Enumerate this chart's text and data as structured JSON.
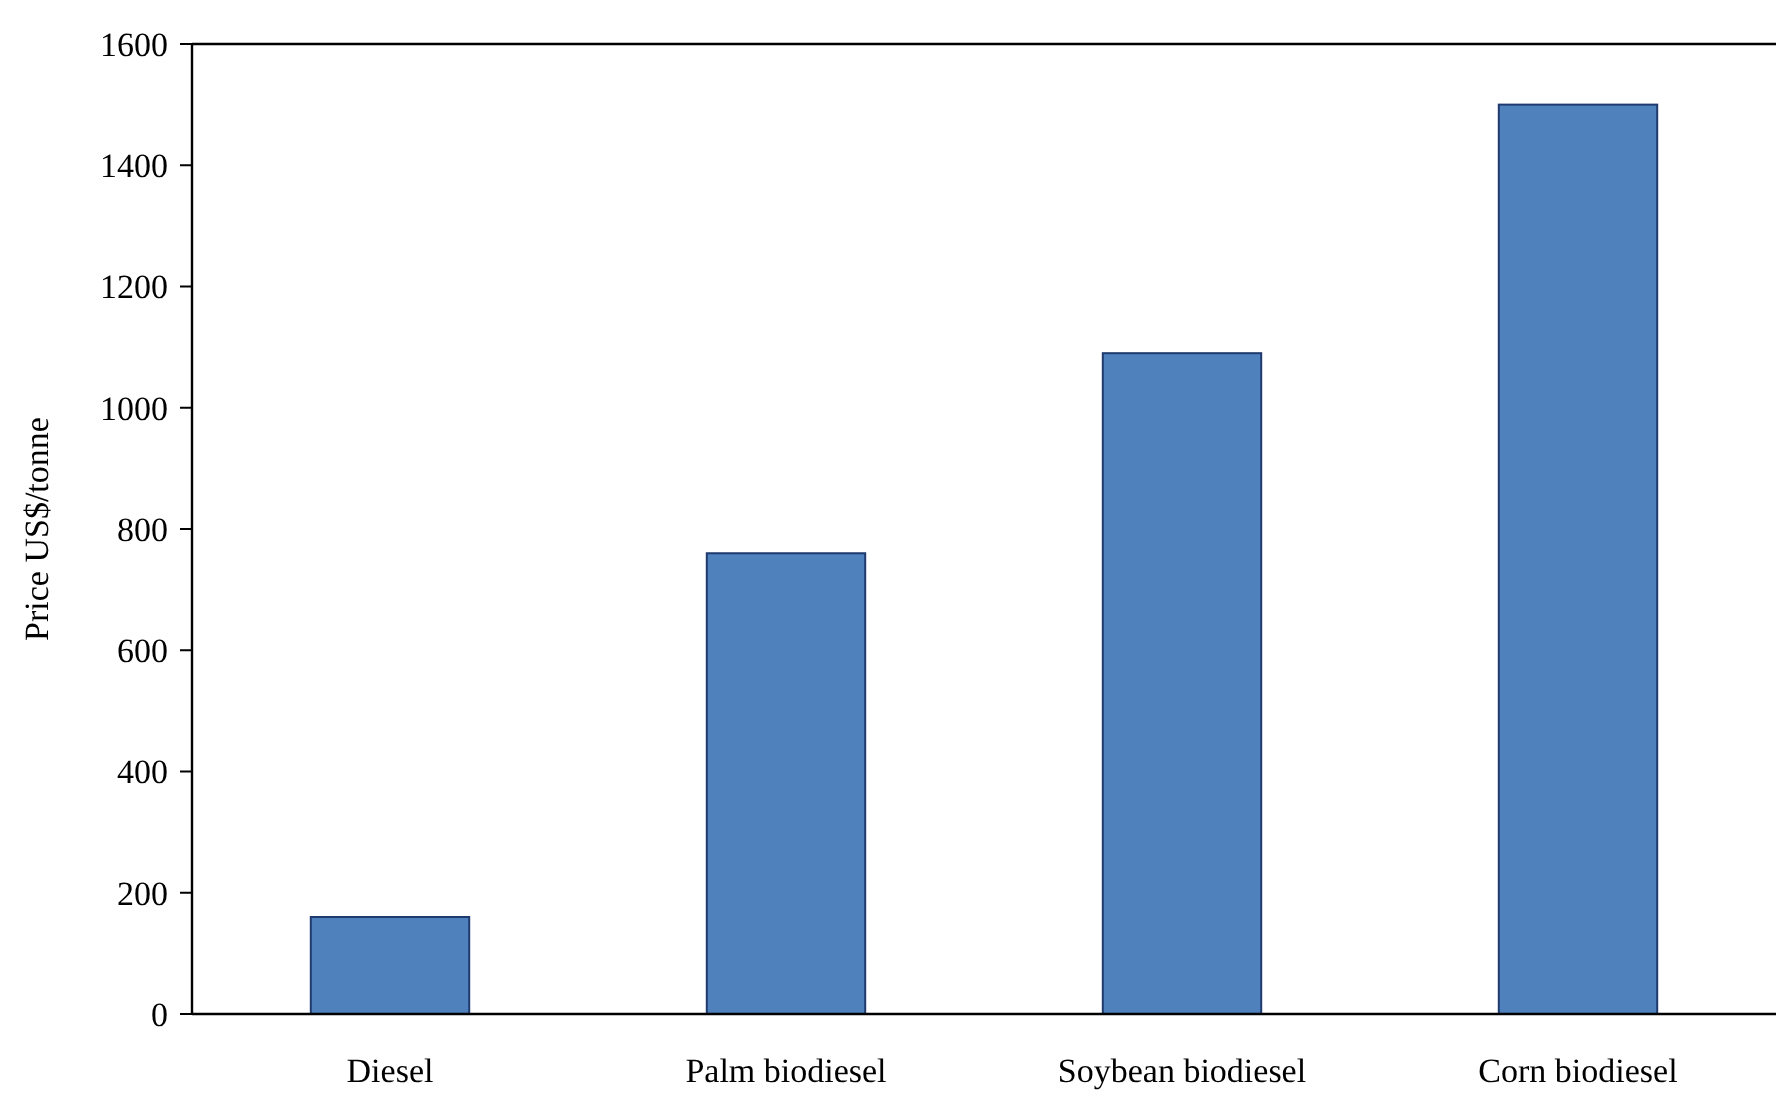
{
  "chart_data": {
    "type": "bar",
    "ylabel": "Price US$/tonne",
    "categories": [
      "Diesel",
      "Palm biodiesel",
      "Soybean biodiesel",
      "Corn biodiesel"
    ],
    "values": [
      160,
      760,
      1090,
      1500
    ],
    "color": "#4f81bd",
    "ylim": [
      0,
      1600
    ],
    "yticks": [
      0,
      200,
      400,
      600,
      800,
      1000,
      1200,
      1400,
      1600
    ],
    "grid": false
  }
}
